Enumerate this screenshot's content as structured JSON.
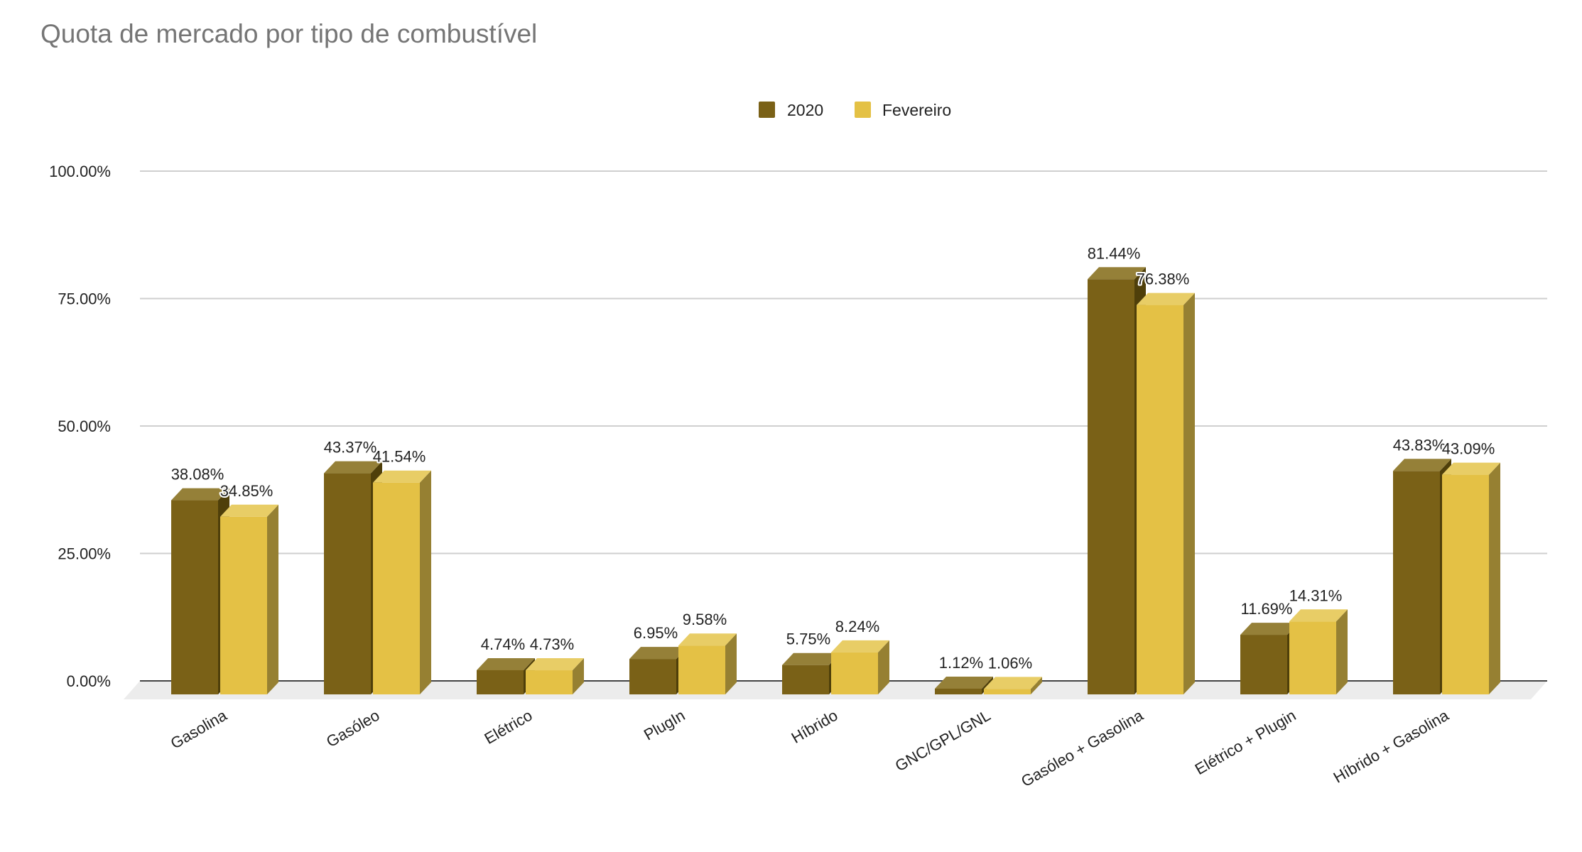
{
  "chart_data": {
    "type": "bar",
    "style": "3d-grouped",
    "title": "Quota de mercado por tipo de combustível",
    "xlabel": "",
    "ylabel": "",
    "ylim": [
      0,
      100
    ],
    "yticks": [
      "0.00%",
      "25.00%",
      "50.00%",
      "75.00%",
      "100.00%"
    ],
    "ytick_values": [
      0,
      25,
      50,
      75,
      100
    ],
    "grid": true,
    "legend_position": "top-center",
    "categories": [
      "Gasolina",
      "Gasóleo",
      "Elétrico",
      "PlugIn",
      "Híbrido",
      "GNC/GPL/GNL",
      "Gasóleo + Gasolina",
      "Elétrico + Plugin",
      "Híbrido + Gasolina"
    ],
    "series": [
      {
        "name": "2020",
        "color": "#7a6117",
        "top": "#958038",
        "side": "#4f3f0a",
        "values": [
          38.08,
          43.37,
          4.74,
          6.95,
          5.75,
          1.12,
          81.44,
          11.69,
          43.83
        ],
        "labels": [
          "38.08%",
          "43.37%",
          "4.74%",
          "6.95%",
          "5.75%",
          "1.12%",
          "81.44%",
          "11.69%",
          "43.83%"
        ]
      },
      {
        "name": "Fevereiro",
        "color": "#e4c145",
        "top": "#e8cd66",
        "side": "#968032",
        "values": [
          34.85,
          41.54,
          4.73,
          9.58,
          8.24,
          1.06,
          76.38,
          14.31,
          43.09
        ],
        "labels": [
          "34.85%",
          "41.54%",
          "4.73%",
          "9.58%",
          "8.24%",
          "1.06%",
          "76.38%",
          "14.31%",
          "43.09%"
        ]
      }
    ]
  }
}
